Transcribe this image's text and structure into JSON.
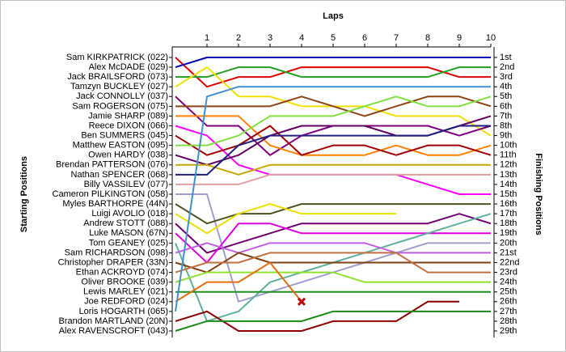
{
  "chart_data": {
    "type": "line",
    "title": "Laps",
    "y_label": "Starting Positions",
    "y2_label": "Finishing Positions",
    "x": [
      0,
      1,
      2,
      3,
      4,
      5,
      6,
      7,
      8,
      9,
      10
    ],
    "xlim": [
      0,
      10
    ],
    "xticks": [
      1,
      2,
      3,
      4,
      5,
      6,
      7,
      8,
      9,
      10
    ],
    "ylim": [
      1,
      29
    ],
    "inverted_y": true,
    "finishing_positions": [
      "1st",
      "2nd",
      "3rd",
      "4th",
      "5th",
      "6th",
      "7th",
      "8th",
      "9th",
      "10th",
      "11th",
      "12th",
      "13th",
      "14th",
      "15th",
      "16th",
      "17th",
      "18th",
      "19th",
      "20th",
      "21st",
      "22nd",
      "23rd",
      "24th",
      "25th",
      "26th",
      "27th",
      "28th",
      "29th"
    ],
    "series": [
      {
        "name": "Sam KIRKPATRICK (022)",
        "color": "#e00000",
        "values": [
          1,
          4,
          3,
          3,
          2,
          2,
          2,
          2,
          2,
          3,
          3
        ]
      },
      {
        "name": "Alex McDADE (029)",
        "color": "#0000b0",
        "values": [
          2,
          1,
          1,
          1,
          1,
          1,
          1,
          1,
          1,
          1,
          1
        ]
      },
      {
        "name": "Jack BRAILSFORD (073)",
        "color": "#20a020",
        "values": [
          3,
          3,
          2,
          2,
          3,
          3,
          3,
          3,
          3,
          2,
          2
        ]
      },
      {
        "name": "Tamzyn BUCKLEY (027)",
        "color": "#f0e000",
        "values": [
          4,
          2,
          5,
          5,
          6,
          6,
          6,
          7,
          7,
          7,
          9
        ]
      },
      {
        "name": "Jack CONNOLLY (037)",
        "color": "#800080",
        "values": [
          5,
          8,
          8,
          11,
          9,
          8,
          8,
          8,
          8,
          9,
          8
        ]
      },
      {
        "name": "Sam ROGERSON (075)",
        "color": "#8b4513",
        "values": [
          6,
          6,
          6,
          6,
          5,
          6,
          7,
          6,
          5,
          5,
          6
        ]
      },
      {
        "name": "Jamie SHARP (089)",
        "color": "#ff8000",
        "values": [
          7,
          7,
          7,
          10,
          11,
          11,
          11,
          10,
          11,
          11,
          10
        ]
      },
      {
        "name": "Reece DIXON (066)",
        "color": "#ff00ff",
        "values": [
          8,
          9,
          12,
          13,
          13,
          13,
          13,
          13,
          14,
          15,
          15
        ]
      },
      {
        "name": "Ben SUMMERS (045)",
        "color": "#a00000",
        "values": [
          9,
          11,
          10,
          8,
          11,
          10,
          10,
          11,
          10,
          10,
          11
        ]
      },
      {
        "name": "Matthew EASTON (095)",
        "color": "#80e040",
        "values": [
          10,
          10,
          9,
          7,
          7,
          7,
          6,
          5,
          6,
          6,
          5
        ]
      },
      {
        "name": "Owen HARDY (038)",
        "color": "#600060",
        "values": [
          11,
          12,
          11,
          9,
          8,
          8,
          8,
          9,
          9,
          8,
          7
        ]
      },
      {
        "name": "Brendan PATTERSON (076)",
        "color": "#c8a800",
        "values": [
          12,
          12,
          13,
          12,
          12,
          12,
          12,
          12,
          12,
          12,
          12
        ]
      },
      {
        "name": "Nathan SPENCER (068)",
        "color": "#202080",
        "values": [
          13,
          13,
          10,
          9,
          9,
          9,
          9,
          9,
          9,
          8,
          8
        ]
      },
      {
        "name": "Billy VASSILEV (077)",
        "color": "#e0a0a0",
        "values": [
          14,
          14,
          14,
          13,
          13,
          13,
          13,
          13,
          13,
          13,
          13
        ]
      },
      {
        "name": "Cameron PILKINGTON (058)",
        "color": "#a0a0d0",
        "values": [
          15,
          15,
          26,
          25,
          24,
          23,
          22,
          21,
          20,
          20,
          20
        ]
      },
      {
        "name": "Myles BARTHORPE (44N)",
        "color": "#505020",
        "values": [
          16,
          18,
          17,
          17,
          16,
          16,
          16,
          16,
          16,
          16,
          16
        ]
      },
      {
        "name": "Luigi AVOLIO (018)",
        "color": "#e8e000",
        "values": [
          17,
          19,
          17,
          16,
          17,
          17,
          17,
          17,
          null,
          null,
          null
        ]
      },
      {
        "name": "Andrew STOTT (088)",
        "color": "#700070",
        "values": [
          18,
          21,
          20,
          19,
          18,
          18,
          18,
          18,
          18,
          17,
          18
        ]
      },
      {
        "name": "Luke MASON (67N)",
        "color": "#e000e0",
        "values": [
          19,
          22,
          18,
          18,
          19,
          19,
          19,
          19,
          19,
          19,
          19
        ]
      },
      {
        "name": "Tom GEANEY (025)",
        "color": "#60b0a0",
        "values": [
          20,
          28,
          27,
          24,
          23,
          22,
          21,
          20,
          19,
          18,
          17
        ]
      },
      {
        "name": "Sam RICHARDSON (098)",
        "color": "#c060e0",
        "values": [
          21,
          20,
          21,
          20,
          20,
          20,
          20,
          21,
          21,
          21,
          21
        ]
      },
      {
        "name": "Christopher DRAPER (33N)",
        "color": "#804010",
        "values": [
          22,
          23,
          21,
          22,
          22,
          22,
          22,
          22,
          22,
          22,
          22
        ]
      },
      {
        "name": "Ethan ACKROYD (074)",
        "color": "#c07040",
        "values": [
          23,
          22,
          22,
          21,
          21,
          21,
          21,
          21,
          23,
          23,
          23
        ]
      },
      {
        "name": "Oliver BROOKE (039)",
        "color": "#90e030",
        "values": [
          24,
          23,
          23,
          23,
          23,
          23,
          24,
          24,
          24,
          24,
          24
        ]
      },
      {
        "name": "Lewis MARLEY (021)",
        "color": "#209020",
        "values": [
          25,
          25,
          25,
          25,
          25,
          25,
          25,
          25,
          25,
          25,
          25
        ]
      },
      {
        "name": "Joe REDFORD (024)",
        "color": "#e07010",
        "marker": "x",
        "values": [
          26,
          24,
          24,
          22,
          26,
          null,
          null,
          null,
          null,
          null,
          null
        ]
      },
      {
        "name": "Loris HOGARTH (065)",
        "color": "#4090d0",
        "values": [
          27,
          5,
          4,
          4,
          4,
          4,
          4,
          4,
          4,
          4,
          4
        ]
      },
      {
        "name": "Brandon MARTLAND (20N)",
        "color": "#900000",
        "values": [
          28,
          27,
          29,
          29,
          29,
          28,
          28,
          28,
          26,
          26,
          null
        ]
      },
      {
        "name": "Alex RAVENSCROFT (043)",
        "color": "#1a8a1a",
        "values": [
          29,
          28,
          28,
          28,
          28,
          27,
          27,
          27,
          27,
          27,
          27
        ]
      }
    ]
  }
}
